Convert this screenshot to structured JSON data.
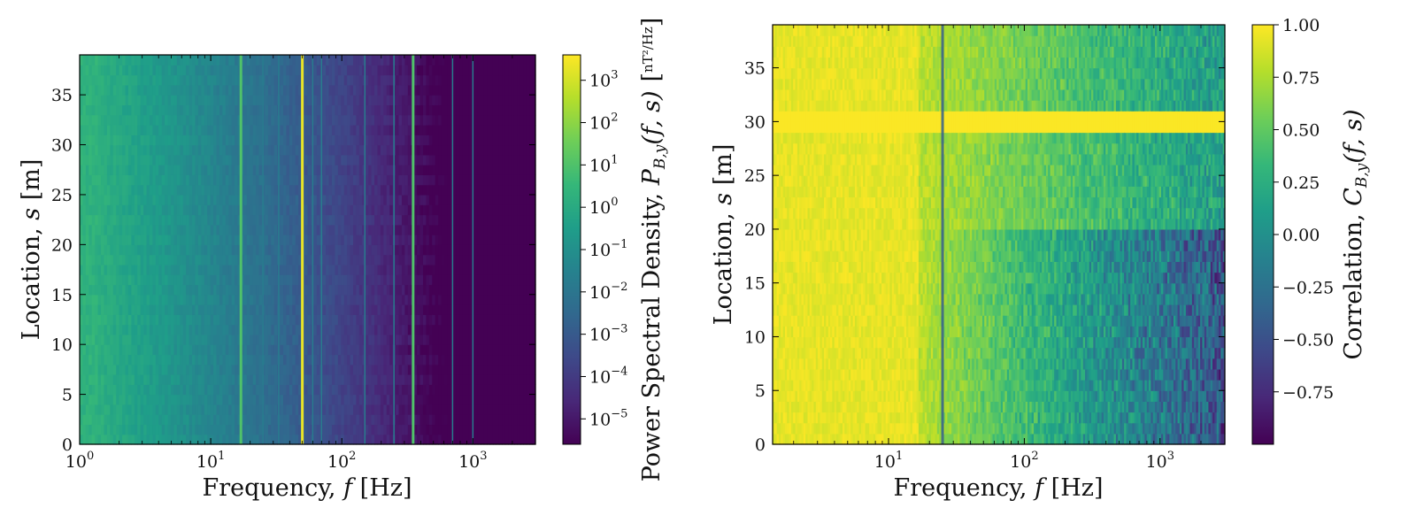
{
  "colors": {
    "viridis": [
      "#440154",
      "#482878",
      "#3e4989",
      "#31688e",
      "#26828e",
      "#1f9e89",
      "#35b779",
      "#6ece58",
      "#b5de2b",
      "#fde725"
    ],
    "axis": "#000000",
    "background": "#ffffff"
  },
  "chart_data": [
    {
      "type": "heatmap",
      "xlabel": {
        "prefix": "Frequency, ",
        "symbol": "f",
        "suffix": " [Hz]"
      },
      "ylabel": {
        "prefix": "Location, ",
        "symbol": "s",
        "suffix": " [m]"
      },
      "x_scale": "log",
      "xlim": [
        1,
        3000
      ],
      "ylim": [
        0,
        39
      ],
      "x_ticks": [
        {
          "value": 1,
          "base": "10",
          "exp": "0"
        },
        {
          "value": 10,
          "base": "10",
          "exp": "1"
        },
        {
          "value": 100,
          "base": "10",
          "exp": "2"
        },
        {
          "value": 1000,
          "base": "10",
          "exp": "3"
        }
      ],
      "y_ticks": [
        "0",
        "5",
        "10",
        "15",
        "20",
        "25",
        "30",
        "35"
      ],
      "colorbar": {
        "label_prefix": "Power Spectral Density, ",
        "label_symbol": "P",
        "label_sub": "B,y",
        "label_args": "(f, s)",
        "unit_num": "nT²",
        "unit_den": "Hz",
        "scale": "log",
        "ticks": [
          {
            "base": "10",
            "exp": "3"
          },
          {
            "base": "10",
            "exp": "2"
          },
          {
            "base": "10",
            "exp": "1"
          },
          {
            "base": "10",
            "exp": "0"
          },
          {
            "base": "10",
            "exp": "−1"
          },
          {
            "base": "10",
            "exp": "−2"
          },
          {
            "base": "10",
            "exp": "−3"
          },
          {
            "base": "10",
            "exp": "−4"
          },
          {
            "base": "10",
            "exp": "−5"
          }
        ],
        "tick_log_values": [
          3,
          2,
          1,
          0,
          -1,
          -2,
          -3,
          -4,
          -5
        ],
        "range_log": [
          -5.6,
          3.6
        ]
      },
      "features": {
        "strong_lines_hz": [
          17,
          50,
          350
        ],
        "other_lines_hz": [
          25,
          33,
          60,
          70,
          150,
          250,
          700,
          1000
        ]
      }
    },
    {
      "type": "heatmap",
      "xlabel": {
        "prefix": "Frequency, ",
        "symbol": "f",
        "suffix": " [Hz]"
      },
      "ylabel": {
        "prefix": "Location, ",
        "symbol": "s",
        "suffix": " [m]"
      },
      "x_scale": "log",
      "xlim": [
        1.4,
        3000
      ],
      "ylim": [
        0,
        39
      ],
      "x_ticks": [
        {
          "value": 10,
          "base": "10",
          "exp": "1"
        },
        {
          "value": 100,
          "base": "10",
          "exp": "2"
        },
        {
          "value": 1000,
          "base": "10",
          "exp": "3"
        }
      ],
      "y_ticks": [
        "0",
        "5",
        "10",
        "15",
        "20",
        "25",
        "30",
        "35"
      ],
      "colorbar": {
        "label_prefix": "Correlation, ",
        "label_symbol": "C",
        "label_sub": "B,y",
        "label_args": "(f, s)",
        "ticks": [
          "1.00",
          "0.75",
          "0.50",
          "0.25",
          "0.00",
          "−0.25",
          "−0.50",
          "−0.75"
        ],
        "tick_values": [
          1.0,
          0.75,
          0.5,
          0.25,
          0.0,
          -0.25,
          -0.5,
          -0.75
        ],
        "range": [
          -1.0,
          1.0
        ]
      },
      "features": {
        "uniform_row_s": 30,
        "dark_line_hz": 25
      }
    }
  ]
}
